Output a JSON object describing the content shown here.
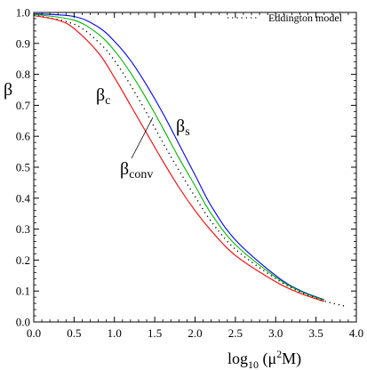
{
  "chart_data": {
    "type": "line",
    "xlabel": {
      "base": "log",
      "sub": "10",
      "arg_open": " (μ",
      "sup": "2",
      "arg_close": "M)"
    },
    "ylabel": "β",
    "xlim": [
      0.0,
      4.0
    ],
    "ylim": [
      0.0,
      1.0
    ],
    "x_ticks": [
      "0.0",
      "0.5",
      "1.0",
      "1.5",
      "2.0",
      "2.5",
      "3.0",
      "3.5",
      "4.0"
    ],
    "y_ticks": [
      "0.0",
      "0.1",
      "0.2",
      "0.3",
      "0.4",
      "0.5",
      "0.6",
      "0.7",
      "0.8",
      "0.9",
      "1.0"
    ],
    "grid": false,
    "legend": {
      "placement": "top-right",
      "entries": [
        {
          "label": "Eddington model",
          "style": "dotted",
          "color": "#000000"
        }
      ]
    },
    "series": [
      {
        "id": "beta_s",
        "color": "#0000ff",
        "style": "solid",
        "x": [
          0.0,
          0.5,
          0.8,
          1.0,
          1.2,
          1.4,
          1.6,
          1.8,
          2.0,
          2.2,
          2.5,
          3.0,
          3.3,
          3.6
        ],
        "y": [
          0.996,
          0.987,
          0.953,
          0.907,
          0.845,
          0.765,
          0.675,
          0.575,
          0.475,
          0.375,
          0.265,
          0.15,
          0.102,
          0.072
        ]
      },
      {
        "id": "green",
        "color": "#00bb00",
        "style": "solid",
        "x": [
          0.0,
          0.5,
          0.8,
          1.0,
          1.2,
          1.4,
          1.6,
          1.8,
          2.0,
          2.2,
          2.5,
          3.0,
          3.3,
          3.6
        ],
        "y": [
          0.994,
          0.975,
          0.93,
          0.877,
          0.805,
          0.72,
          0.627,
          0.53,
          0.44,
          0.35,
          0.25,
          0.145,
          0.1,
          0.07
        ]
      },
      {
        "id": "eddington",
        "color": "#000000",
        "style": "dotted",
        "x": [
          0.0,
          0.5,
          0.8,
          1.0,
          1.2,
          1.4,
          1.6,
          1.8,
          2.0,
          2.2,
          2.5,
          3.0,
          3.3,
          3.6,
          3.85
        ],
        "y": [
          0.992,
          0.962,
          0.905,
          0.845,
          0.765,
          0.675,
          0.58,
          0.49,
          0.405,
          0.325,
          0.235,
          0.14,
          0.097,
          0.068,
          0.052
        ]
      },
      {
        "id": "beta_c",
        "color": "#ff0000",
        "style": "solid",
        "x": [
          0.0,
          0.3,
          0.5,
          0.8,
          1.0,
          1.2,
          1.4,
          1.6,
          1.8,
          2.0,
          2.2,
          2.5,
          3.0,
          3.3,
          3.6
        ],
        "y": [
          0.99,
          0.975,
          0.948,
          0.87,
          0.79,
          0.7,
          0.61,
          0.52,
          0.435,
          0.36,
          0.295,
          0.215,
          0.13,
          0.093,
          0.066
        ]
      }
    ],
    "annotations": [
      {
        "id": "beta_c",
        "base": "β",
        "sub": "c"
      },
      {
        "id": "beta_s",
        "base": "β",
        "sub": "s"
      },
      {
        "id": "beta_conv",
        "base": "β",
        "sub": "conv"
      }
    ]
  }
}
